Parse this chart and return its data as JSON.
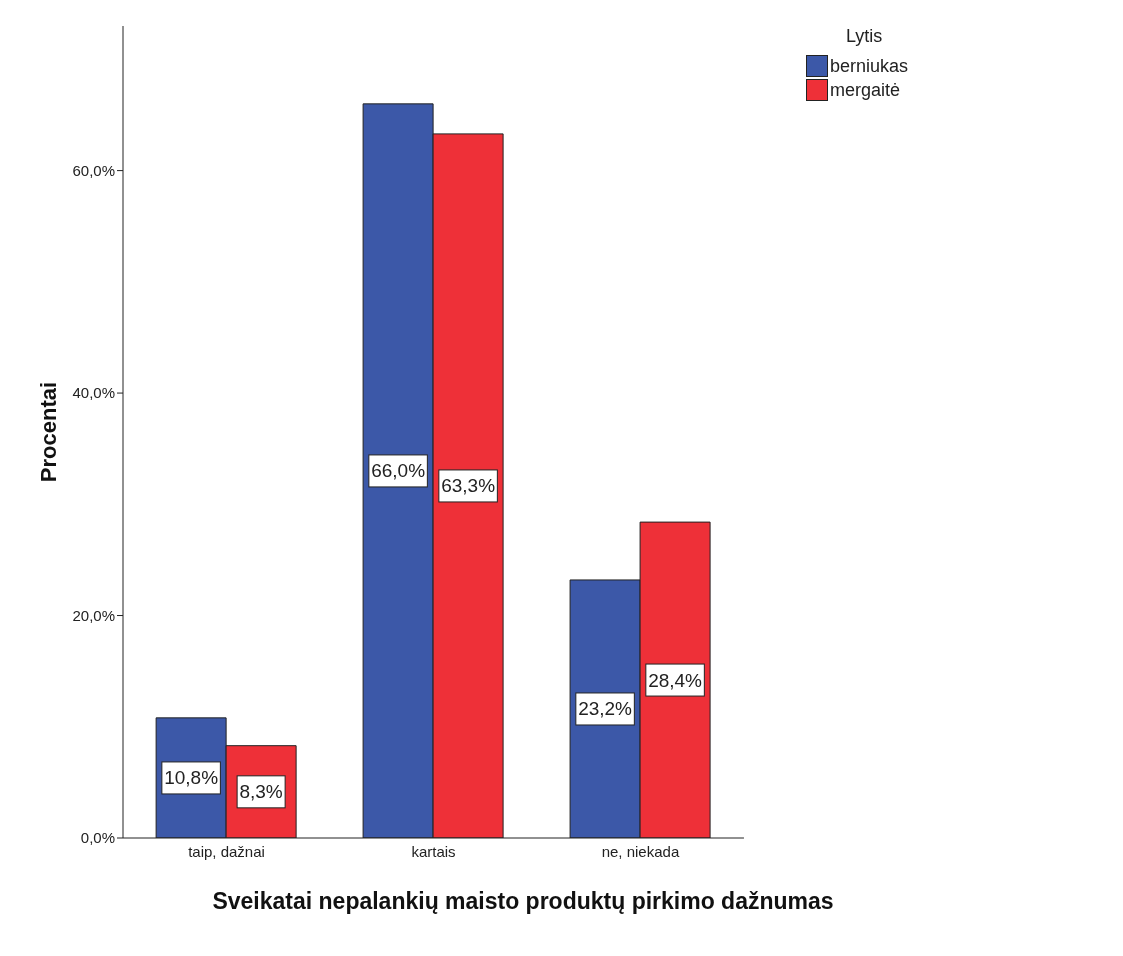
{
  "chart_data": {
    "type": "bar",
    "xlabel": "Sveikatai nepalankių maisto produktų pirkimo dažnumas",
    "ylabel": "Procentai",
    "legend_title": "Lytis",
    "categories": [
      "taip, dažnai",
      "kartais",
      "ne, niekada"
    ],
    "series": [
      {
        "name": "berniukas",
        "color": "#3c58a8",
        "values": [
          10.8,
          66.0,
          23.2
        ],
        "value_labels": [
          "10,8%",
          "66,0%",
          "23,2%"
        ]
      },
      {
        "name": "mergaitė",
        "color": "#ee3038",
        "values": [
          8.3,
          63.3,
          28.4
        ],
        "value_labels": [
          "8,3%",
          "63,3%",
          "28,4%"
        ]
      }
    ],
    "ylim": [
      0,
      73
    ],
    "yticks": [
      {
        "value": 0,
        "label": "0,0%"
      },
      {
        "value": 20,
        "label": "20,0%"
      },
      {
        "value": 40,
        "label": "40,0%"
      },
      {
        "value": 60,
        "label": "60,0%"
      }
    ],
    "grid": false,
    "legend": "top right"
  }
}
